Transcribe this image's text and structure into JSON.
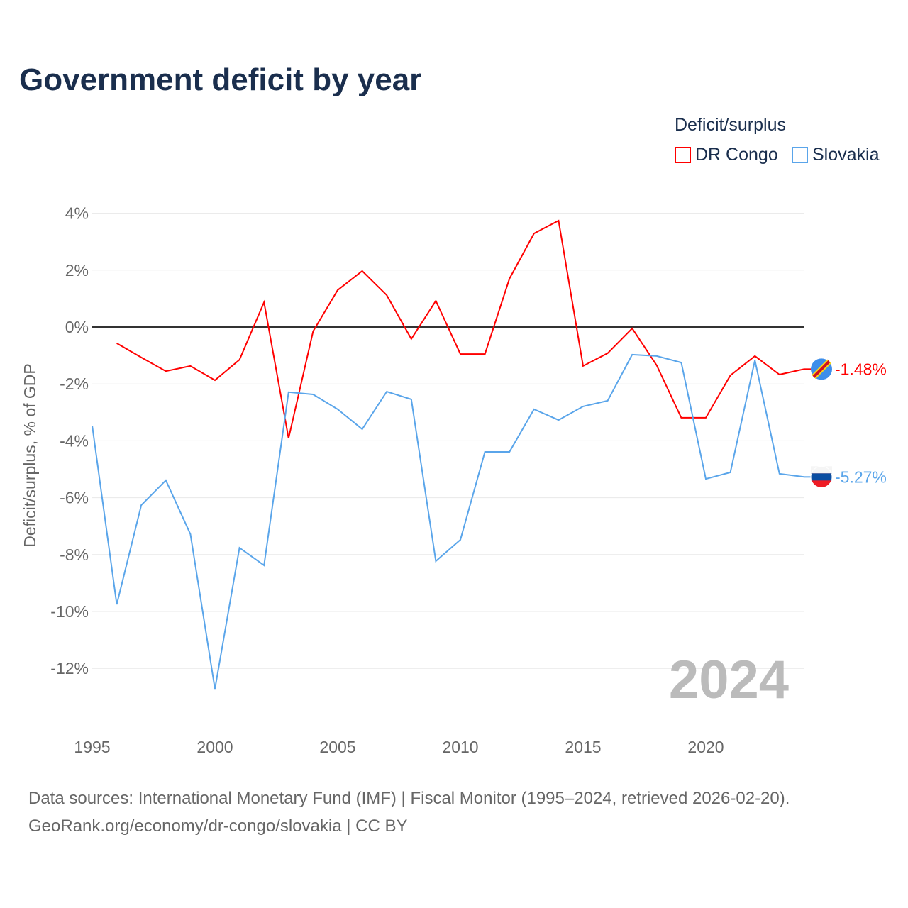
{
  "title": "Government deficit by year",
  "source_line1": "Data sources: International Monetary Fund (IMF) | Fiscal Monitor (1995–2024, retrieved 2026-02-20).",
  "source_line2": "GeoRank.org/economy/dr-congo/slovakia | CC BY",
  "chart_data": {
    "type": "line",
    "title": "Government deficit by year",
    "ylabel": "Deficit/surplus, % of GDP",
    "xlabel": "",
    "legend_title": "Deficit/surplus",
    "legend_position": "top-right",
    "watermark_year": "2024",
    "ylim": [
      -14,
      4.5
    ],
    "xlim": [
      1995,
      2024
    ],
    "yticks": [
      4,
      2,
      0,
      -2,
      -4,
      -6,
      -8,
      -10,
      -12
    ],
    "ytick_labels": [
      "4%",
      "2%",
      "0%",
      "-2%",
      "-4%",
      "-6%",
      "-8%",
      "-10%",
      "-12%"
    ],
    "xticks": [
      1995,
      2000,
      2005,
      2010,
      2015,
      2020
    ],
    "xtick_labels": [
      "1995",
      "2000",
      "2005",
      "2010",
      "2015",
      "2020"
    ],
    "x": [
      1995,
      1996,
      1997,
      1998,
      1999,
      2000,
      2001,
      2002,
      2003,
      2004,
      2005,
      2006,
      2007,
      2008,
      2009,
      2010,
      2011,
      2012,
      2013,
      2014,
      2015,
      2016,
      2017,
      2018,
      2019,
      2020,
      2021,
      2022,
      2023,
      2024
    ],
    "series": [
      {
        "name": "DR Congo",
        "color": "#ff0000",
        "end_label": "-1.48%",
        "values": [
          null,
          -0.57,
          -1.07,
          -1.55,
          -1.37,
          -1.87,
          -1.15,
          0.87,
          -3.91,
          -0.15,
          1.3,
          1.97,
          1.12,
          -0.42,
          0.92,
          -0.95,
          -0.95,
          1.7,
          3.29,
          3.74,
          -1.37,
          -0.92,
          -0.05,
          -1.35,
          -3.19,
          -3.19,
          -1.7,
          -1.02,
          -1.67,
          -1.48
        ]
      },
      {
        "name": "Slovakia",
        "color": "#5aa5ea",
        "end_label": "-5.27%",
        "values": [
          -3.47,
          -9.75,
          -6.26,
          -5.39,
          -7.28,
          -12.72,
          -7.76,
          -8.38,
          -2.29,
          -2.37,
          -2.89,
          -3.59,
          -2.27,
          -2.54,
          -8.23,
          -7.48,
          -4.39,
          -4.39,
          -2.89,
          -3.27,
          -2.79,
          -2.59,
          -0.97,
          -1.02,
          -1.25,
          -5.34,
          -5.11,
          -1.17,
          -5.16,
          -5.27
        ]
      }
    ]
  }
}
